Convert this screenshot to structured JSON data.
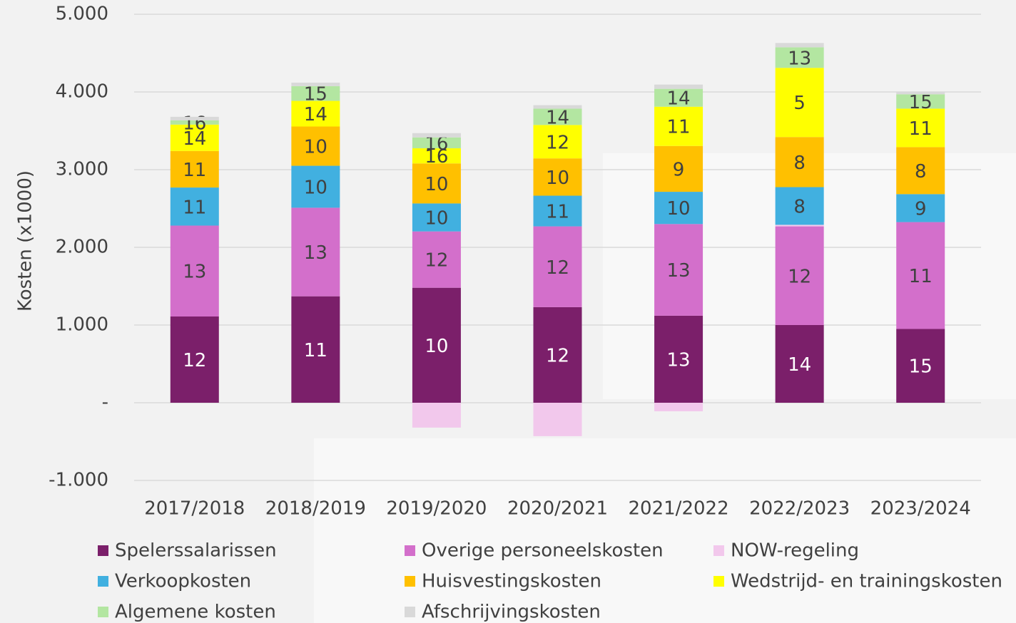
{
  "chart_data": {
    "type": "stacked_bar",
    "y_label": "Kosten (x1000)",
    "categories": [
      "2017/2018",
      "2018/2019",
      "2019/2020",
      "2020/2021",
      "2021/2022",
      "2022/2023",
      "2023/2024"
    ],
    "series": [
      {
        "name": "Spelerssalarissen",
        "color": "#7b1f6a",
        "values": [
          1110,
          1370,
          1480,
          1230,
          1120,
          1000,
          950
        ],
        "ranks": [
          12,
          11,
          10,
          12,
          13,
          14,
          15
        ]
      },
      {
        "name": "Overige personeelskosten",
        "color": "#d36fcb",
        "values": [
          1170,
          1140,
          725,
          1040,
          1180,
          1270,
          1375
        ],
        "ranks": [
          13,
          13,
          12,
          12,
          13,
          12,
          11
        ]
      },
      {
        "name": "NOW-regeling",
        "color": "#f2c8ec",
        "values": [
          0,
          0,
          -320,
          -430,
          -110,
          20,
          0
        ],
        "ranks": [
          null,
          null,
          null,
          null,
          null,
          null,
          null
        ]
      },
      {
        "name": "Verkoopkosten",
        "color": "#41b0e0",
        "values": [
          490,
          540,
          360,
          395,
          415,
          485,
          360
        ],
        "ranks": [
          11,
          10,
          10,
          11,
          10,
          8,
          9
        ]
      },
      {
        "name": "Huisvestingskosten",
        "color": "#ffc000",
        "values": [
          470,
          505,
          515,
          480,
          590,
          645,
          605
        ],
        "ranks": [
          11,
          10,
          10,
          10,
          9,
          8,
          8
        ]
      },
      {
        "name": "Wedstrijd- en trainingskosten",
        "color": "#ffff00",
        "values": [
          340,
          330,
          195,
          430,
          505,
          890,
          495
        ],
        "ranks": [
          14,
          14,
          16,
          12,
          11,
          5,
          11
        ]
      },
      {
        "name": "Algemene kosten",
        "color": "#b3e6a1",
        "values": [
          55,
          190,
          140,
          210,
          230,
          265,
          185
        ],
        "ranks": [
          16,
          15,
          16,
          14,
          14,
          13,
          15
        ]
      },
      {
        "name": "Afschrijvingskosten",
        "color": "#d9d9d9",
        "values": [
          45,
          45,
          55,
          45,
          55,
          55,
          35
        ],
        "ranks": [
          null,
          null,
          null,
          null,
          null,
          null,
          null
        ]
      }
    ],
    "ylim": [
      -1000,
      5000
    ],
    "yticks": [
      {
        "value": -1000,
        "label": "-1.000"
      },
      {
        "value": 0,
        "label": "-"
      },
      {
        "value": 1000,
        "label": "1.000"
      },
      {
        "value": 2000,
        "label": "2.000"
      },
      {
        "value": 3000,
        "label": "3.000"
      },
      {
        "value": 4000,
        "label": "4.000"
      },
      {
        "value": 5000,
        "label": "5.000"
      }
    ],
    "grid": true,
    "legend": "bottom"
  }
}
